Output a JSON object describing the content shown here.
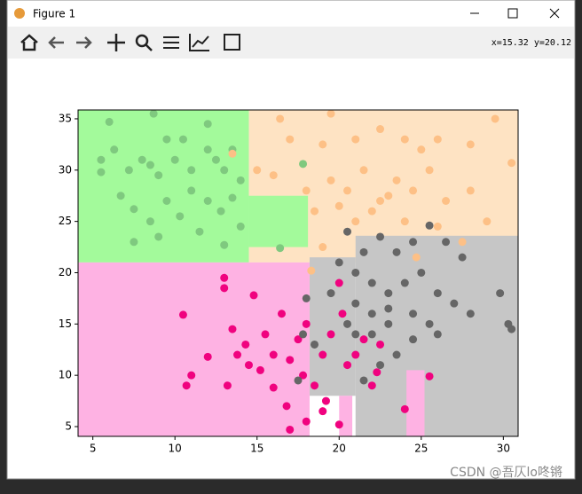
{
  "window": {
    "title": "Figure 1",
    "status": "x=15.32 y=20.12",
    "watermark": "CSDN @吾仄lo咚锵"
  },
  "chart_data": {
    "type": "scatter",
    "xlim": [
      4.1,
      30.9
    ],
    "ylim": [
      4.05,
      35.86
    ],
    "xticks": [
      5,
      10,
      15,
      20,
      25,
      30
    ],
    "yticks": [
      5,
      10,
      15,
      20,
      25,
      30,
      35
    ],
    "regions": [
      {
        "color": "#fee3c3",
        "x": [
          14.5,
          30.9
        ],
        "y": [
          21,
          35.86
        ]
      },
      {
        "color": "#a3fa9b",
        "x": [
          4.1,
          14.5
        ],
        "y": [
          21,
          35.86
        ]
      },
      {
        "color": "#a3fa9b",
        "x": [
          14.5,
          18.1
        ],
        "y": [
          22.5,
          27.5
        ]
      },
      {
        "color": "#feb2e3",
        "x": [
          4.1,
          18.2
        ],
        "y": [
          4.05,
          21
        ]
      },
      {
        "color": "#c6c6c6",
        "x": [
          21,
          30.9
        ],
        "y": [
          4.05,
          23.6
        ]
      },
      {
        "color": "#c6c6c6",
        "x": [
          18.2,
          21
        ],
        "y": [
          8,
          21.5
        ]
      },
      {
        "color": "#feb2e3",
        "x": [
          24.1,
          25.2
        ],
        "y": [
          4.05,
          10.5
        ]
      },
      {
        "color": "#feb2e3",
        "x": [
          20,
          20.8
        ],
        "y": [
          4.05,
          8
        ]
      }
    ],
    "series": [
      {
        "color": "#7fc97f",
        "x": [
          6,
          8.7,
          5.5,
          6.3,
          7.2,
          8,
          8.5,
          9,
          10,
          10.5,
          11,
          12,
          12.5,
          13,
          13.5,
          14,
          6.7,
          7.5,
          8.5,
          9.5,
          10.3,
          11,
          12,
          12.8,
          13.5,
          14,
          11.5,
          9,
          13,
          17.8,
          7.5,
          16.4,
          5.5,
          9.5,
          12
        ],
        "y": [
          34.7,
          35.5,
          31,
          32,
          30,
          31,
          30.5,
          29.5,
          31,
          33,
          30,
          32,
          31,
          30,
          32,
          29,
          27.5,
          26.2,
          25,
          27,
          25.5,
          28,
          27,
          26,
          27.3,
          24.5,
          24,
          23.5,
          22.7,
          30.6,
          23,
          22.4,
          29.8,
          33,
          34.5
        ]
      },
      {
        "color": "#fdc086",
        "x": [
          16.4,
          19.5,
          17,
          19,
          21,
          22.5,
          24,
          25,
          26,
          28,
          29.5,
          30.5,
          15,
          16,
          18,
          19.5,
          20.5,
          21.5,
          22.5,
          23.5,
          24.5,
          25.5,
          26.5,
          28,
          29,
          18.5,
          20,
          21,
          22,
          23,
          24,
          26,
          27.5,
          13.5,
          18.3,
          24.7,
          19
        ],
        "y": [
          35,
          35.5,
          33,
          32.5,
          33,
          34,
          33,
          32,
          33,
          32.5,
          35,
          30.7,
          30,
          29.5,
          28,
          29,
          28,
          30,
          27,
          29,
          28,
          30,
          27,
          28,
          25,
          26,
          26.5,
          25,
          26,
          27.5,
          25,
          24.5,
          23,
          31.6,
          20.2,
          21.5,
          22.5
        ]
      },
      {
        "color": "#f0027f",
        "x": [
          10.5,
          10.7,
          11,
          12,
          13,
          13,
          13.5,
          13.2,
          13.8,
          14.3,
          14.8,
          15.2,
          15.5,
          16,
          16.5,
          16.8,
          17,
          17.5,
          17.8,
          18,
          18.5,
          19,
          19.5,
          19.2,
          20,
          20.2,
          20.5,
          21,
          21.5,
          22,
          22.5,
          24,
          25.5,
          18,
          19,
          17,
          20,
          16,
          14.5,
          22.3
        ],
        "y": [
          15.9,
          9,
          10,
          11.8,
          19.5,
          18.5,
          14.5,
          9,
          12,
          13,
          17.8,
          10.5,
          14,
          12,
          16,
          7,
          11.5,
          13.5,
          10,
          15,
          9,
          12,
          14,
          7.5,
          19,
          16,
          11,
          12,
          13.5,
          9,
          13,
          6.7,
          9.9,
          5.5,
          6.5,
          4.7,
          5.2,
          8.8,
          11,
          10.3
        ]
      },
      {
        "color": "#666666",
        "x": [
          20.5,
          21.5,
          22.5,
          23.5,
          24.5,
          25.5,
          26.5,
          27.5,
          20,
          21,
          22,
          23,
          24,
          25,
          26,
          27,
          28,
          29.8,
          30.3,
          30.5,
          24.5,
          25.5,
          26,
          23,
          22,
          21,
          20.5,
          19.5,
          18,
          17.8,
          18.5,
          21,
          22.5,
          23.5,
          24.5,
          17.5,
          21.5,
          23,
          22
        ],
        "y": [
          24,
          22,
          23.5,
          22,
          23,
          24.6,
          23,
          21.5,
          21,
          20,
          19,
          18,
          19,
          20,
          18,
          17,
          16,
          18,
          15,
          14.5,
          16,
          15,
          14,
          15,
          16,
          17,
          15,
          18,
          17.5,
          14,
          13,
          14,
          11,
          12,
          13.5,
          9.5,
          9.5,
          16.5,
          14
        ]
      }
    ]
  }
}
